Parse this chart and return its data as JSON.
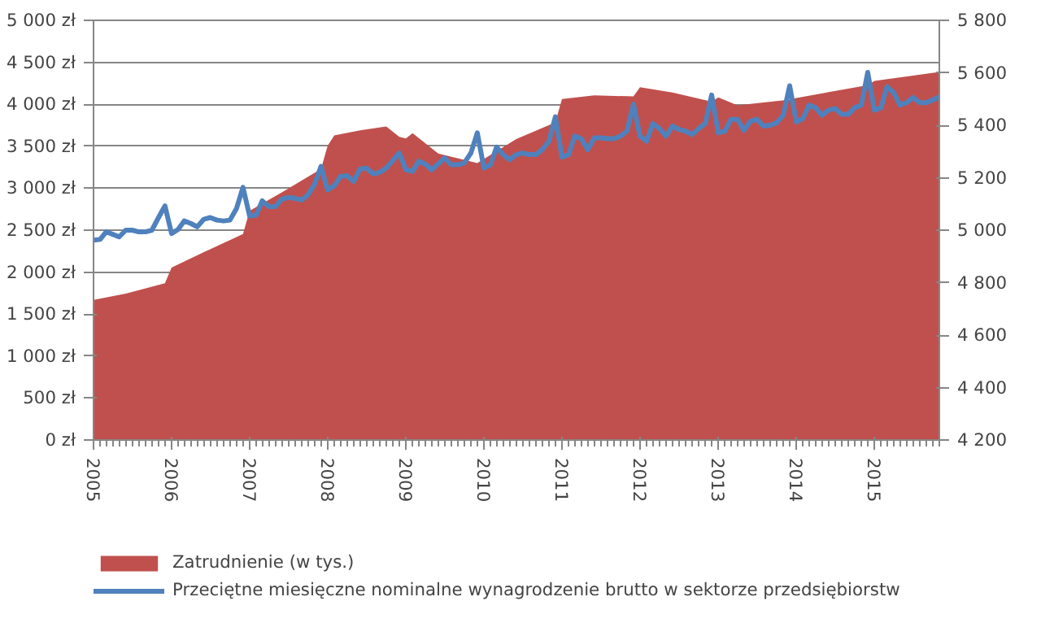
{
  "chart_data": {
    "type": "line",
    "x": [
      "2005-01",
      "2005-02",
      "2005-03",
      "2005-04",
      "2005-05",
      "2005-06",
      "2005-07",
      "2005-08",
      "2005-09",
      "2005-10",
      "2005-11",
      "2005-12",
      "2006-01",
      "2006-02",
      "2006-03",
      "2006-04",
      "2006-05",
      "2006-06",
      "2006-07",
      "2006-08",
      "2006-09",
      "2006-10",
      "2006-11",
      "2006-12",
      "2007-01",
      "2007-02",
      "2007-03",
      "2007-04",
      "2007-05",
      "2007-06",
      "2007-07",
      "2007-08",
      "2007-09",
      "2007-10",
      "2007-11",
      "2007-12",
      "2008-01",
      "2008-02",
      "2008-03",
      "2008-04",
      "2008-05",
      "2008-06",
      "2008-07",
      "2008-08",
      "2008-09",
      "2008-10",
      "2008-11",
      "2008-12",
      "2009-01",
      "2009-02",
      "2009-03",
      "2009-04",
      "2009-05",
      "2009-06",
      "2009-07",
      "2009-08",
      "2009-09",
      "2009-10",
      "2009-11",
      "2009-12",
      "2010-01",
      "2010-02",
      "2010-03",
      "2010-04",
      "2010-05",
      "2010-06",
      "2010-07",
      "2010-08",
      "2010-09",
      "2010-10",
      "2010-11",
      "2010-12",
      "2011-01",
      "2011-02",
      "2011-03",
      "2011-04",
      "2011-05",
      "2011-06",
      "2011-07",
      "2011-08",
      "2011-09",
      "2011-10",
      "2011-11",
      "2011-12",
      "2012-01",
      "2012-02",
      "2012-03",
      "2012-04",
      "2012-05",
      "2012-06",
      "2012-07",
      "2012-08",
      "2012-09",
      "2012-10",
      "2012-11",
      "2012-12",
      "2013-01",
      "2013-02",
      "2013-03",
      "2013-04",
      "2013-05",
      "2013-06",
      "2013-07",
      "2013-08",
      "2013-09",
      "2013-10",
      "2013-11",
      "2013-12",
      "2014-01",
      "2014-02",
      "2014-03",
      "2014-04",
      "2014-05",
      "2014-06",
      "2014-07",
      "2014-08",
      "2014-09",
      "2014-10",
      "2014-11",
      "2014-12",
      "2015-01",
      "2015-02",
      "2015-03",
      "2015-04",
      "2015-05",
      "2015-06",
      "2015-07",
      "2015-08",
      "2015-09",
      "2015-10",
      "2015-11"
    ],
    "series": [
      {
        "name": "Zatrudnienie (w tys.)",
        "type": "area",
        "axis": "y2",
        "color": "#c0504d",
        "x": [
          "2005-01",
          "2005-06",
          "2005-12",
          "2006-01",
          "2006-06",
          "2006-12",
          "2007-01",
          "2007-06",
          "2007-12",
          "2008-01",
          "2008-02",
          "2008-06",
          "2008-10",
          "2008-12",
          "2009-01",
          "2009-02",
          "2009-06",
          "2009-12",
          "2010-06",
          "2010-12",
          "2011-01",
          "2011-06",
          "2011-12",
          "2012-01",
          "2012-06",
          "2012-12",
          "2013-01",
          "2013-04",
          "2013-12",
          "2014-01",
          "2014-12",
          "2015-01",
          "2015-11"
        ],
        "values": [
          4734,
          4758,
          4798,
          4857,
          4916,
          4985,
          5074,
          5144,
          5233,
          5322,
          5361,
          5381,
          5395,
          5356,
          5350,
          5370,
          5292,
          5256,
          5347,
          5411,
          5500,
          5514,
          5510,
          5545,
          5525,
          5490,
          5506,
          5476,
          5498,
          5504,
          5553,
          5569,
          5603
        ]
      },
      {
        "name": "Przeciętne miesięczne nominalne wynagrodzenie brutto w sektorze przedsiębiorstw",
        "color": "#4f81bd",
        "values": [
          2380,
          2390,
          2480,
          2450,
          2420,
          2500,
          2500,
          2480,
          2480,
          2500,
          2650,
          2790,
          2460,
          2510,
          2610,
          2580,
          2540,
          2630,
          2650,
          2620,
          2610,
          2620,
          2760,
          3010,
          2670,
          2680,
          2850,
          2780,
          2780,
          2870,
          2890,
          2880,
          2860,
          2920,
          3050,
          3260,
          2980,
          3030,
          3140,
          3150,
          3080,
          3230,
          3240,
          3170,
          3190,
          3240,
          3330,
          3420,
          3220,
          3200,
          3320,
          3290,
          3220,
          3290,
          3360,
          3280,
          3280,
          3300,
          3420,
          3660,
          3240,
          3280,
          3490,
          3400,
          3340,
          3400,
          3420,
          3400,
          3400,
          3460,
          3560,
          3850,
          3370,
          3400,
          3620,
          3590,
          3460,
          3600,
          3600,
          3590,
          3590,
          3620,
          3680,
          4000,
          3620,
          3560,
          3770,
          3710,
          3620,
          3740,
          3700,
          3680,
          3640,
          3710,
          3770,
          4110,
          3660,
          3680,
          3820,
          3820,
          3690,
          3800,
          3820,
          3740,
          3750,
          3780,
          3870,
          4220,
          3790,
          3830,
          3990,
          3960,
          3870,
          3930,
          3950,
          3880,
          3880,
          3960,
          3990,
          4380,
          3930,
          3960,
          4210,
          4140,
          3990,
          4020,
          4080,
          4020,
          4020,
          4050,
          4090
        ]
      }
    ],
    "xlim": [
      "2005-01",
      "2015-11"
    ],
    "xticks": [
      {
        "value": "2005-01",
        "label": "2005"
      },
      {
        "value": "2006-01",
        "label": "2006"
      },
      {
        "value": "2007-01",
        "label": "2007"
      },
      {
        "value": "2008-01",
        "label": "2008"
      },
      {
        "value": "2009-01",
        "label": "2009"
      },
      {
        "value": "2010-01",
        "label": "2010"
      },
      {
        "value": "2011-01",
        "label": "2011"
      },
      {
        "value": "2012-01",
        "label": "2012"
      },
      {
        "value": "2013-01",
        "label": "2013"
      },
      {
        "value": "2014-01",
        "label": "2014"
      },
      {
        "value": "2015-01",
        "label": "2015"
      }
    ],
    "ylim": [
      0,
      5000
    ],
    "yticks": [
      {
        "value": 0,
        "label": "0 zł"
      },
      {
        "value": 500,
        "label": "500 zł"
      },
      {
        "value": 1000,
        "label": "1 000 zł"
      },
      {
        "value": 1500,
        "label": "1 500 zł"
      },
      {
        "value": 2000,
        "label": "2 000 zł"
      },
      {
        "value": 2500,
        "label": "2 500 zł"
      },
      {
        "value": 3000,
        "label": "3 000 zł"
      },
      {
        "value": 3500,
        "label": "3 500 zł"
      },
      {
        "value": 4000,
        "label": "4 000 zł"
      },
      {
        "value": 4500,
        "label": "4 500 zł"
      },
      {
        "value": 5000,
        "label": "5 000 zł"
      }
    ],
    "y2lim": [
      4200,
      5800
    ],
    "y2ticks": [
      {
        "value": 4200,
        "label": "4 200"
      },
      {
        "value": 4400,
        "label": "4 400"
      },
      {
        "value": 4600,
        "label": "4 600"
      },
      {
        "value": 4800,
        "label": "4 800"
      },
      {
        "value": 5000,
        "label": "5 000"
      },
      {
        "value": 5200,
        "label": "5 200"
      },
      {
        "value": 5400,
        "label": "5 400"
      },
      {
        "value": 5600,
        "label": "5 600"
      },
      {
        "value": 5800,
        "label": "5 800"
      }
    ],
    "grid": "y",
    "legend": "bottom",
    "marker": "none",
    "line_style": "solid"
  }
}
